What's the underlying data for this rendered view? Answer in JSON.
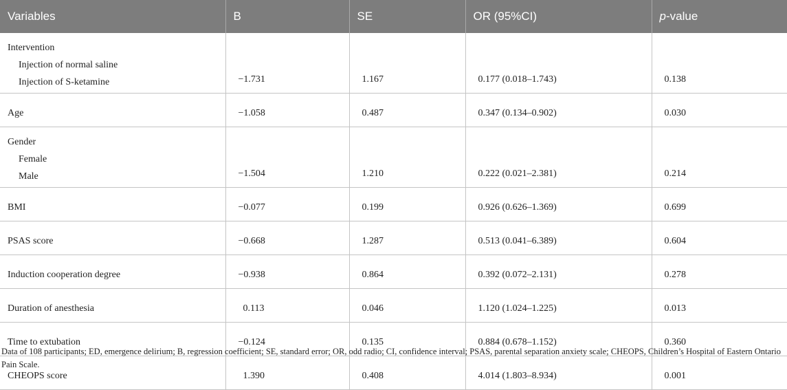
{
  "headers": [
    "Variables",
    "B",
    "SE",
    "OR (95%CI)",
    "p-value"
  ],
  "header_pvalue": {
    "italic": "p",
    "rest": "-value"
  },
  "rows": {
    "intervention": {
      "group": "Intervention",
      "ref": "Injection of normal saline",
      "level": "Injection of S-ketamine",
      "b": "−1.731",
      "se": "1.167",
      "or": "0.177 (0.018–1.743)",
      "p": "0.138"
    },
    "age": {
      "label": "Age",
      "b": "−1.058",
      "se": "0.487",
      "or": "0.347 (0.134–0.902)",
      "p": "0.030"
    },
    "gender": {
      "group": "Gender",
      "ref": "Female",
      "level": "Male",
      "b": "−1.504",
      "se": "1.210",
      "or": "0.222 (0.021–2.381)",
      "p": "0.214"
    },
    "bmi": {
      "label": "BMI",
      "b": "−0.077",
      "se": "0.199",
      "or": "0.926 (0.626–1.369)",
      "p": "0.699"
    },
    "psas": {
      "label": "PSAS score",
      "b": "−0.668",
      "se": "1.287",
      "or": "0.513 (0.041–6.389)",
      "p": "0.604"
    },
    "induction": {
      "label": "Induction cooperation degree",
      "b": "−0.938",
      "se": "0.864",
      "or": "0.392 (0.072–2.131)",
      "p": "0.278"
    },
    "duration": {
      "label": "Duration of anesthesia",
      "b": " 0.113",
      "se": "0.046",
      "or": "1.120 (1.024–1.225)",
      "p": "0.013"
    },
    "extubation": {
      "label": "Time to extubation",
      "b": "−0.124",
      "se": "0.135",
      "or": "0.884 (0.678–1.152)",
      "p": "0.360"
    },
    "cheops": {
      "label": "CHEOPS score",
      "b": " 1.390",
      "se": "0.408",
      "or": "4.014 (1.803–8.934)",
      "p": "0.001"
    }
  },
  "footnote": "Data of 108 participants; ED, emergence delirium; B, regression coefficient; SE, standard error; OR, odd radio; CI, confidence interval; PSAS, parental separation anxiety scale; CHEOPS, Children’s Hospital of Eastern Ontario Pain Scale."
}
